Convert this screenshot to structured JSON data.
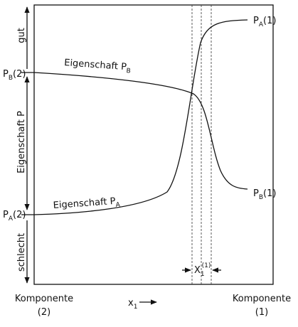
{
  "axis": {
    "top": "gut",
    "middle": "Eigenschaft P",
    "bottom": "schlecht"
  },
  "points": {
    "pb2": {
      "base": "P",
      "sub": "B",
      "tail": "(2)"
    },
    "pa2": {
      "base": "P",
      "sub": "A",
      "tail": "(2)"
    },
    "pa1": {
      "base": "P",
      "sub": "A",
      "tail": "(1)"
    },
    "pb1": {
      "base": "P",
      "sub": "B",
      "tail": "(1)"
    }
  },
  "curves": {
    "b": {
      "base": "Eigenschaft P",
      "sub": "B"
    },
    "a": {
      "base": "Eigenschaft P",
      "sub": "A"
    }
  },
  "interval": {
    "base": "X",
    "sub": "1",
    "sup": "(1)"
  },
  "x_axis": {
    "base": "x",
    "sub": "1"
  },
  "left": {
    "name": "Komponente",
    "num": "(2)"
  },
  "right": {
    "name": "Komponente",
    "num": "(1)"
  }
}
